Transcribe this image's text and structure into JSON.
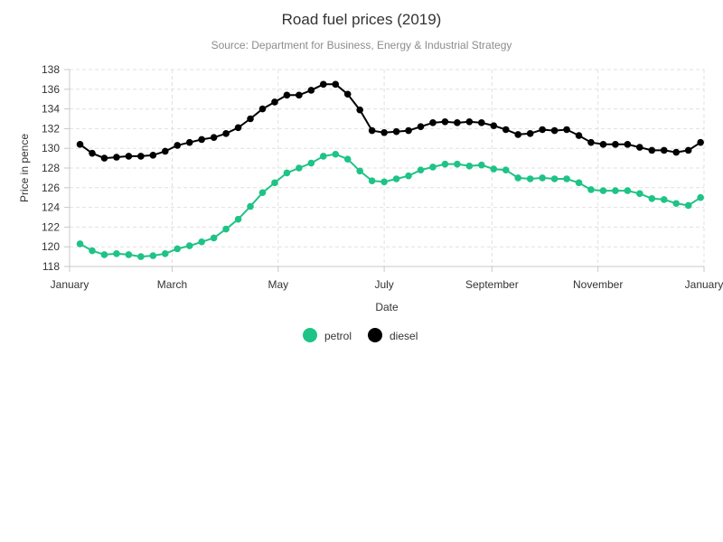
{
  "chart_data": {
    "type": "line",
    "title": "Road fuel prices (2019)",
    "subtitle": "Source: Department for Business, Energy & Industrial Strategy",
    "xlabel": "Date",
    "ylabel": "Price in pence",
    "ylim": [
      118,
      138
    ],
    "yticks": [
      118,
      120,
      122,
      124,
      126,
      128,
      130,
      132,
      134,
      136,
      138
    ],
    "xlim": [
      "2019-01-01",
      "2020-01-01"
    ],
    "xticks": [
      {
        "date": "2019-01-01",
        "label": "January"
      },
      {
        "date": "2019-03-01",
        "label": "March"
      },
      {
        "date": "2019-05-01",
        "label": "May"
      },
      {
        "date": "2019-07-01",
        "label": "July"
      },
      {
        "date": "2019-09-01",
        "label": "September"
      },
      {
        "date": "2019-11-01",
        "label": "November"
      },
      {
        "date": "2020-01-01",
        "label": "January"
      }
    ],
    "grid": true,
    "legend_position": "bottom-center",
    "x": [
      "2019-01-07",
      "2019-01-14",
      "2019-01-21",
      "2019-01-28",
      "2019-02-04",
      "2019-02-11",
      "2019-02-18",
      "2019-02-25",
      "2019-03-04",
      "2019-03-11",
      "2019-03-18",
      "2019-03-25",
      "2019-04-01",
      "2019-04-08",
      "2019-04-15",
      "2019-04-22",
      "2019-04-29",
      "2019-05-06",
      "2019-05-13",
      "2019-05-20",
      "2019-05-27",
      "2019-06-03",
      "2019-06-10",
      "2019-06-17",
      "2019-06-24",
      "2019-07-01",
      "2019-07-08",
      "2019-07-15",
      "2019-07-22",
      "2019-07-29",
      "2019-08-05",
      "2019-08-12",
      "2019-08-19",
      "2019-08-26",
      "2019-09-02",
      "2019-09-09",
      "2019-09-16",
      "2019-09-23",
      "2019-09-30",
      "2019-10-07",
      "2019-10-14",
      "2019-10-21",
      "2019-10-28",
      "2019-11-04",
      "2019-11-11",
      "2019-11-18",
      "2019-11-25",
      "2019-12-02",
      "2019-12-09",
      "2019-12-16",
      "2019-12-23",
      "2019-12-30"
    ],
    "series": [
      {
        "name": "petrol",
        "color": "#1ec386",
        "values": [
          120.3,
          119.6,
          119.2,
          119.3,
          119.2,
          119.0,
          119.1,
          119.3,
          119.8,
          120.1,
          120.5,
          120.9,
          121.8,
          122.8,
          124.1,
          125.5,
          126.5,
          127.5,
          128.0,
          128.5,
          129.2,
          129.4,
          128.9,
          127.7,
          126.7,
          126.6,
          126.9,
          127.2,
          127.8,
          128.1,
          128.4,
          128.4,
          128.2,
          128.3,
          127.9,
          127.8,
          127.0,
          126.9,
          127.0,
          126.9,
          126.9,
          126.5,
          125.8,
          125.7,
          125.7,
          125.7,
          125.4,
          124.9,
          124.8,
          124.4,
          124.2,
          125.0
        ]
      },
      {
        "name": "diesel",
        "color": "#000000",
        "values": [
          130.4,
          129.5,
          129.0,
          129.1,
          129.2,
          129.2,
          129.3,
          129.7,
          130.3,
          130.6,
          130.9,
          131.1,
          131.5,
          132.1,
          133.0,
          134.0,
          134.7,
          135.4,
          135.4,
          135.9,
          136.5,
          136.5,
          135.5,
          133.9,
          131.8,
          131.6,
          131.7,
          131.8,
          132.2,
          132.6,
          132.7,
          132.6,
          132.7,
          132.6,
          132.3,
          131.9,
          131.4,
          131.5,
          131.9,
          131.8,
          131.9,
          131.3,
          130.6,
          130.4,
          130.4,
          130.4,
          130.1,
          129.8,
          129.8,
          129.6,
          129.8,
          130.6
        ]
      }
    ]
  }
}
